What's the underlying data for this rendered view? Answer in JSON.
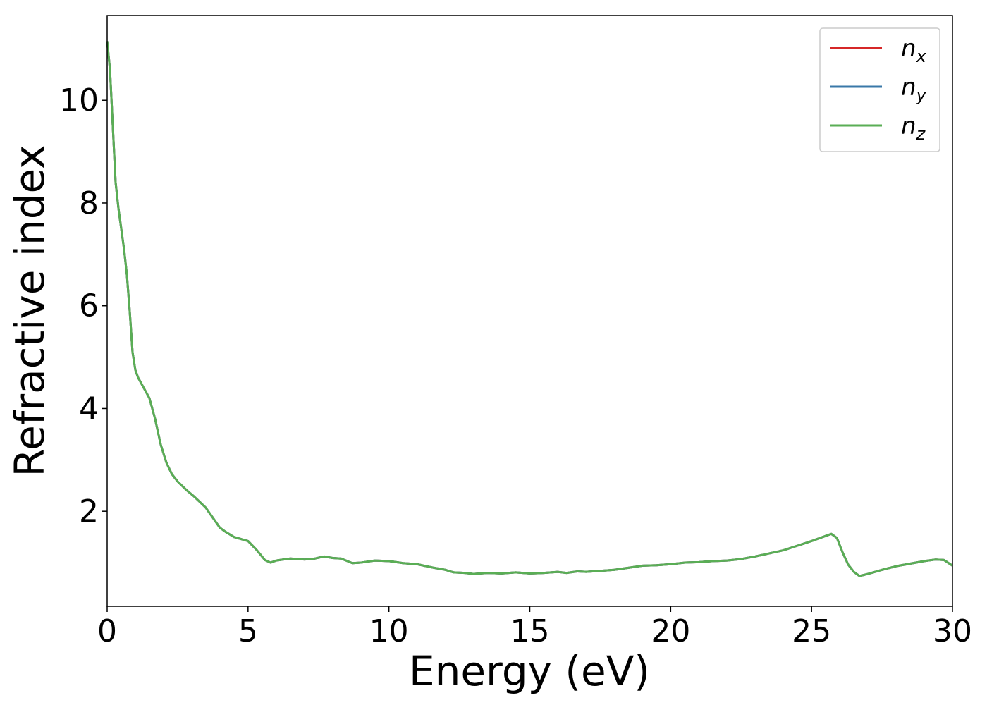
{
  "chart_data": {
    "type": "line",
    "title": "",
    "xlabel": "Energy (eV)",
    "ylabel": "Refractive index",
    "xlim": [
      0,
      30
    ],
    "ylim": [
      0.15,
      11.65
    ],
    "xticks": [
      0,
      5,
      10,
      15,
      20,
      25,
      30
    ],
    "yticks": [
      2,
      4,
      6,
      8,
      10
    ],
    "grid": false,
    "legend_position": "top-right",
    "series": [
      {
        "name": "n_x",
        "label_main": "n",
        "label_sub": "x",
        "color": "#d62728",
        "x": [
          0,
          0.1,
          0.2,
          0.3,
          0.4,
          0.5,
          0.6,
          0.7,
          0.8,
          0.9,
          1.0,
          1.1,
          1.2,
          1.3,
          1.4,
          1.5,
          1.7,
          1.9,
          2.1,
          2.3,
          2.5,
          2.8,
          3.1,
          3.5,
          4.0,
          4.2,
          4.5,
          5.0,
          5.3,
          5.6,
          5.8,
          6.0,
          6.5,
          7.0,
          7.3,
          7.7,
          8.0,
          8.3,
          8.7,
          9.0,
          9.5,
          10.0,
          10.5,
          11.0,
          11.5,
          12.0,
          12.3,
          12.7,
          13.0,
          13.5,
          14.0,
          14.5,
          15.0,
          15.5,
          16.0,
          16.3,
          16.7,
          17.0,
          17.5,
          18.0,
          18.5,
          19.0,
          19.5,
          20.0,
          20.5,
          21.0,
          21.5,
          22.0,
          22.5,
          23.0,
          23.5,
          24.0,
          24.5,
          25.0,
          25.3,
          25.5,
          25.7,
          25.9,
          26.1,
          26.3,
          26.5,
          26.7,
          27.0,
          27.5,
          28.0,
          28.5,
          29.0,
          29.4,
          29.7,
          30.0
        ],
        "y": [
          11.15,
          10.6,
          9.5,
          8.4,
          7.9,
          7.5,
          7.1,
          6.6,
          5.9,
          5.1,
          4.75,
          4.6,
          4.5,
          4.4,
          4.3,
          4.2,
          3.8,
          3.3,
          2.95,
          2.72,
          2.58,
          2.42,
          2.28,
          2.07,
          1.68,
          1.6,
          1.5,
          1.42,
          1.25,
          1.05,
          1.0,
          1.04,
          1.08,
          1.06,
          1.07,
          1.12,
          1.09,
          1.08,
          0.99,
          1.0,
          1.04,
          1.03,
          0.99,
          0.97,
          0.91,
          0.86,
          0.81,
          0.8,
          0.78,
          0.8,
          0.79,
          0.81,
          0.79,
          0.8,
          0.82,
          0.8,
          0.83,
          0.82,
          0.84,
          0.86,
          0.9,
          0.94,
          0.95,
          0.97,
          1.0,
          1.01,
          1.03,
          1.04,
          1.07,
          1.12,
          1.18,
          1.24,
          1.33,
          1.42,
          1.48,
          1.52,
          1.56,
          1.48,
          1.2,
          0.96,
          0.82,
          0.74,
          0.78,
          0.86,
          0.93,
          0.98,
          1.03,
          1.06,
          1.05,
          0.94
        ]
      },
      {
        "name": "n_y",
        "label_main": "n",
        "label_sub": "y",
        "color": "#3a78a8",
        "x": [
          0,
          0.1,
          0.2,
          0.3,
          0.4,
          0.5,
          0.6,
          0.7,
          0.8,
          0.9,
          1.0,
          1.1,
          1.2,
          1.3,
          1.4,
          1.5,
          1.7,
          1.9,
          2.1,
          2.3,
          2.5,
          2.8,
          3.1,
          3.5,
          4.0,
          4.2,
          4.5,
          5.0,
          5.3,
          5.6,
          5.8,
          6.0,
          6.5,
          7.0,
          7.3,
          7.7,
          8.0,
          8.3,
          8.7,
          9.0,
          9.5,
          10.0,
          10.5,
          11.0,
          11.5,
          12.0,
          12.3,
          12.7,
          13.0,
          13.5,
          14.0,
          14.5,
          15.0,
          15.5,
          16.0,
          16.3,
          16.7,
          17.0,
          17.5,
          18.0,
          18.5,
          19.0,
          19.5,
          20.0,
          20.5,
          21.0,
          21.5,
          22.0,
          22.5,
          23.0,
          23.5,
          24.0,
          24.5,
          25.0,
          25.3,
          25.5,
          25.7,
          25.9,
          26.1,
          26.3,
          26.5,
          26.7,
          27.0,
          27.5,
          28.0,
          28.5,
          29.0,
          29.4,
          29.7,
          30.0
        ],
        "y": [
          11.15,
          10.6,
          9.5,
          8.4,
          7.9,
          7.5,
          7.1,
          6.6,
          5.9,
          5.1,
          4.75,
          4.6,
          4.5,
          4.4,
          4.3,
          4.2,
          3.8,
          3.3,
          2.95,
          2.72,
          2.58,
          2.42,
          2.28,
          2.07,
          1.68,
          1.6,
          1.5,
          1.42,
          1.25,
          1.05,
          1.0,
          1.04,
          1.08,
          1.06,
          1.07,
          1.12,
          1.09,
          1.08,
          0.99,
          1.0,
          1.04,
          1.03,
          0.99,
          0.97,
          0.91,
          0.86,
          0.81,
          0.8,
          0.78,
          0.8,
          0.79,
          0.81,
          0.79,
          0.8,
          0.82,
          0.8,
          0.83,
          0.82,
          0.84,
          0.86,
          0.9,
          0.94,
          0.95,
          0.97,
          1.0,
          1.01,
          1.03,
          1.04,
          1.07,
          1.12,
          1.18,
          1.24,
          1.33,
          1.42,
          1.48,
          1.52,
          1.56,
          1.48,
          1.2,
          0.96,
          0.82,
          0.74,
          0.78,
          0.86,
          0.93,
          0.98,
          1.03,
          1.06,
          1.05,
          0.94
        ]
      },
      {
        "name": "n_z",
        "label_main": "n",
        "label_sub": "z",
        "color": "#5aae55",
        "x": [
          0,
          0.1,
          0.2,
          0.3,
          0.4,
          0.5,
          0.6,
          0.7,
          0.8,
          0.9,
          1.0,
          1.1,
          1.2,
          1.3,
          1.4,
          1.5,
          1.7,
          1.9,
          2.1,
          2.3,
          2.5,
          2.8,
          3.1,
          3.5,
          4.0,
          4.2,
          4.5,
          5.0,
          5.3,
          5.6,
          5.8,
          6.0,
          6.5,
          7.0,
          7.3,
          7.7,
          8.0,
          8.3,
          8.7,
          9.0,
          9.5,
          10.0,
          10.5,
          11.0,
          11.5,
          12.0,
          12.3,
          12.7,
          13.0,
          13.5,
          14.0,
          14.5,
          15.0,
          15.5,
          16.0,
          16.3,
          16.7,
          17.0,
          17.5,
          18.0,
          18.5,
          19.0,
          19.5,
          20.0,
          20.5,
          21.0,
          21.5,
          22.0,
          22.5,
          23.0,
          23.5,
          24.0,
          24.5,
          25.0,
          25.3,
          25.5,
          25.7,
          25.9,
          26.1,
          26.3,
          26.5,
          26.7,
          27.0,
          27.5,
          28.0,
          28.5,
          29.0,
          29.4,
          29.7,
          30.0
        ],
        "y": [
          11.15,
          10.6,
          9.5,
          8.4,
          7.9,
          7.5,
          7.1,
          6.6,
          5.9,
          5.1,
          4.75,
          4.6,
          4.5,
          4.4,
          4.3,
          4.2,
          3.8,
          3.3,
          2.95,
          2.72,
          2.58,
          2.42,
          2.28,
          2.07,
          1.68,
          1.6,
          1.5,
          1.42,
          1.25,
          1.05,
          1.0,
          1.04,
          1.08,
          1.06,
          1.07,
          1.12,
          1.09,
          1.08,
          0.99,
          1.0,
          1.04,
          1.03,
          0.99,
          0.97,
          0.91,
          0.86,
          0.81,
          0.8,
          0.78,
          0.8,
          0.79,
          0.81,
          0.79,
          0.8,
          0.82,
          0.8,
          0.83,
          0.82,
          0.84,
          0.86,
          0.9,
          0.94,
          0.95,
          0.97,
          1.0,
          1.01,
          1.03,
          1.04,
          1.07,
          1.12,
          1.18,
          1.24,
          1.33,
          1.42,
          1.48,
          1.52,
          1.56,
          1.48,
          1.2,
          0.96,
          0.82,
          0.74,
          0.78,
          0.86,
          0.93,
          0.98,
          1.03,
          1.06,
          1.05,
          0.94
        ]
      }
    ]
  }
}
